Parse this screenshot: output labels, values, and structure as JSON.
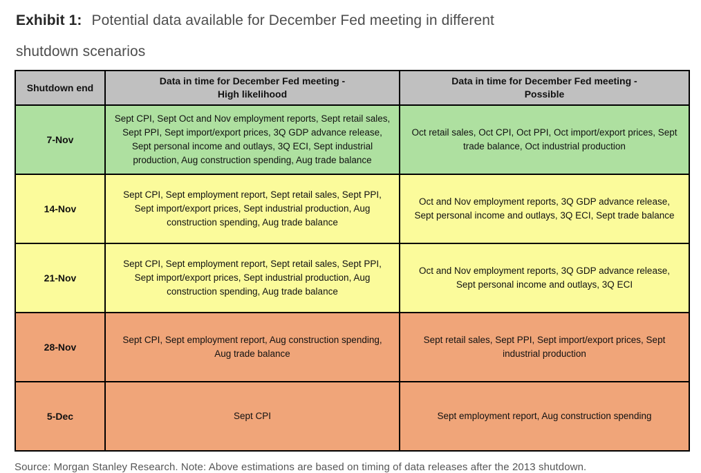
{
  "exhibit": {
    "label": "Exhibit 1:",
    "title_line1": "Potential data available for December Fed meeting in different",
    "title_line2": "shutdown scenarios"
  },
  "colors": {
    "header_bg": "#c0c0c0",
    "row_green": "#aee0a0",
    "row_yellow": "#fbfb9b",
    "row_salmon": "#f0a579",
    "border": "#000000"
  },
  "table": {
    "header": {
      "col1": "Shutdown end",
      "col2_line1": "Data in time for December Fed meeting -",
      "col2_line2": "High likelihood",
      "col3_line1": "Data in time for December Fed meeting -",
      "col3_line2": "Possible"
    },
    "rows": [
      {
        "date": "7-Nov",
        "color": "#aee0a0",
        "high_likelihood": "Sept CPI, Sept Oct and Nov employment reports, Sept retail sales, Sept PPI, Sept import/export prices, 3Q GDP advance release, Sept personal income and outlays, 3Q ECI, Sept industrial production, Aug construction spending, Aug trade balance",
        "possible": "Oct retail sales, Oct CPI, Oct PPI, Oct import/export prices, Sept trade balance, Oct industrial production"
      },
      {
        "date": "14-Nov",
        "color": "#fbfb9b",
        "high_likelihood": "Sept CPI, Sept employment report, Sept retail sales, Sept PPI, Sept import/export prices, Sept industrial production, Aug construction spending, Aug trade balance",
        "possible": "Oct and Nov employment reports, 3Q GDP advance release, Sept personal income and outlays, 3Q ECI, Sept trade balance"
      },
      {
        "date": "21-Nov",
        "color": "#fbfb9b",
        "high_likelihood": "Sept CPI, Sept employment report, Sept retail sales, Sept PPI, Sept import/export prices, Sept industrial production, Aug construction spending, Aug trade balance",
        "possible": "Oct and Nov employment reports, 3Q GDP advance release, Sept personal income and outlays, 3Q ECI"
      },
      {
        "date": "28-Nov",
        "color": "#f0a579",
        "high_likelihood": "Sept CPI, Sept employment report, Aug construction spending, Aug trade balance",
        "possible": "Sept retail sales, Sept PPI, Sept import/export prices, Sept industrial production"
      },
      {
        "date": "5-Dec",
        "color": "#f0a579",
        "high_likelihood": "Sept CPI",
        "possible": "Sept employment report, Aug construction spending"
      }
    ]
  },
  "footer": {
    "source": "Source: Morgan Stanley Research. Note: Above estimations are based on timing of data releases after the 2013 shutdown."
  }
}
